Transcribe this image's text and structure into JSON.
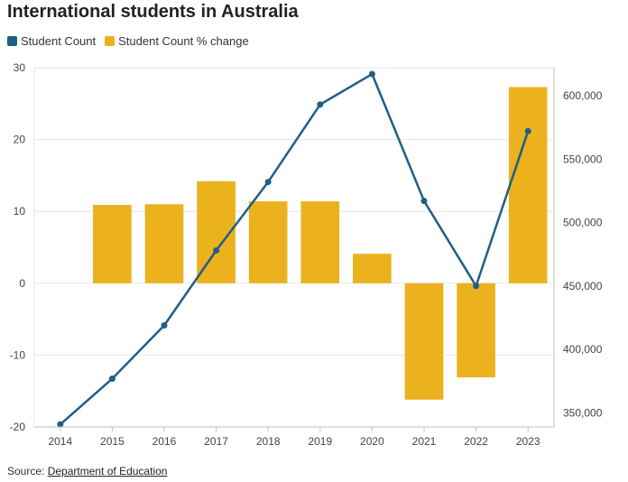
{
  "title": "International students in Australia",
  "legend": {
    "count_label": "Student Count",
    "pct_label": "Student Count % change"
  },
  "source": {
    "prefix": "Source: ",
    "link_text": "Department of Education"
  },
  "colors": {
    "line": "#1f5f86",
    "bar": "#ebb21e",
    "grid": "#e6e6e6",
    "axis": "#bdbdbd"
  },
  "chart_data": {
    "type": "bar+line",
    "categories": [
      "2014",
      "2015",
      "2016",
      "2017",
      "2018",
      "2019",
      "2020",
      "2021",
      "2022",
      "2023"
    ],
    "series": [
      {
        "name": "Student Count % change",
        "type": "bar",
        "axis": "left",
        "values": [
          null,
          10.9,
          11.0,
          14.2,
          11.4,
          11.4,
          4.1,
          -16.2,
          -13.1,
          27.3
        ]
      },
      {
        "name": "Student Count",
        "type": "line",
        "axis": "right",
        "values": [
          341000,
          377000,
          419000,
          478000,
          532000,
          593000,
          617000,
          517000,
          450000,
          572000
        ]
      }
    ],
    "y_left": {
      "ticks": [
        30,
        20,
        10,
        0,
        -10,
        -20
      ],
      "range": [
        -20,
        30
      ]
    },
    "y_right": {
      "ticks": [
        "600,000",
        "550,000",
        "500,000",
        "450,000",
        "400,000",
        "350,000"
      ],
      "tick_values": [
        600000,
        550000,
        500000,
        450000,
        400000,
        350000
      ],
      "range": [
        339000,
        622000
      ]
    },
    "grid": true,
    "legend_position": "top-left"
  }
}
